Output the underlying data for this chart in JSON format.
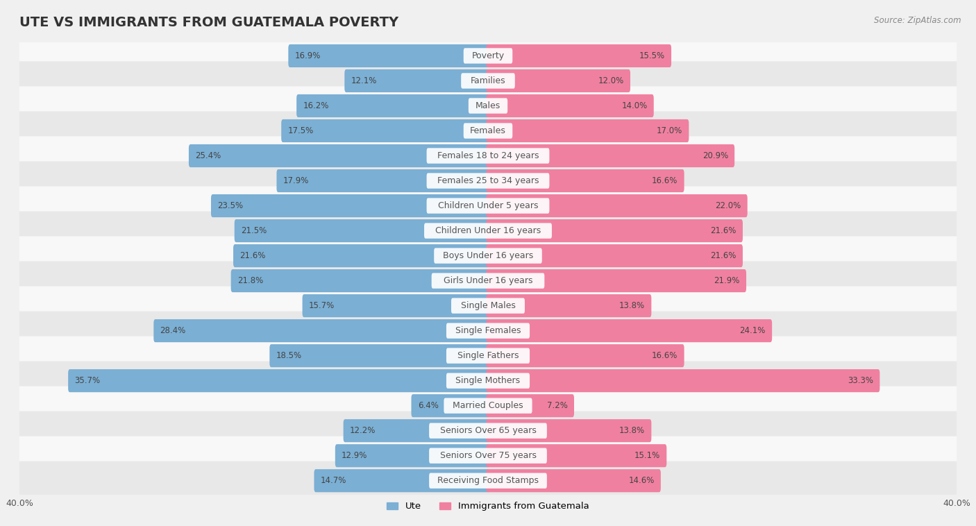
{
  "title": "UTE VS IMMIGRANTS FROM GUATEMALA POVERTY",
  "source": "Source: ZipAtlas.com",
  "categories": [
    "Poverty",
    "Families",
    "Males",
    "Females",
    "Females 18 to 24 years",
    "Females 25 to 34 years",
    "Children Under 5 years",
    "Children Under 16 years",
    "Boys Under 16 years",
    "Girls Under 16 years",
    "Single Males",
    "Single Females",
    "Single Fathers",
    "Single Mothers",
    "Married Couples",
    "Seniors Over 65 years",
    "Seniors Over 75 years",
    "Receiving Food Stamps"
  ],
  "ute_values": [
    16.9,
    12.1,
    16.2,
    17.5,
    25.4,
    17.9,
    23.5,
    21.5,
    21.6,
    21.8,
    15.7,
    28.4,
    18.5,
    35.7,
    6.4,
    12.2,
    12.9,
    14.7
  ],
  "guatemala_values": [
    15.5,
    12.0,
    14.0,
    17.0,
    20.9,
    16.6,
    22.0,
    21.6,
    21.6,
    21.9,
    13.8,
    24.1,
    16.6,
    33.3,
    7.2,
    13.8,
    15.1,
    14.6
  ],
  "ute_color": "#7bafd4",
  "guatemala_color": "#f080a0",
  "axis_max": 40.0,
  "background_color": "#f0f0f0",
  "row_light": "#f8f8f8",
  "row_dark": "#e8e8e8",
  "title_fontsize": 14,
  "label_fontsize": 9,
  "value_fontsize": 8.5,
  "legend_label_ute": "Ute",
  "legend_label_guatemala": "Immigrants from Guatemala"
}
